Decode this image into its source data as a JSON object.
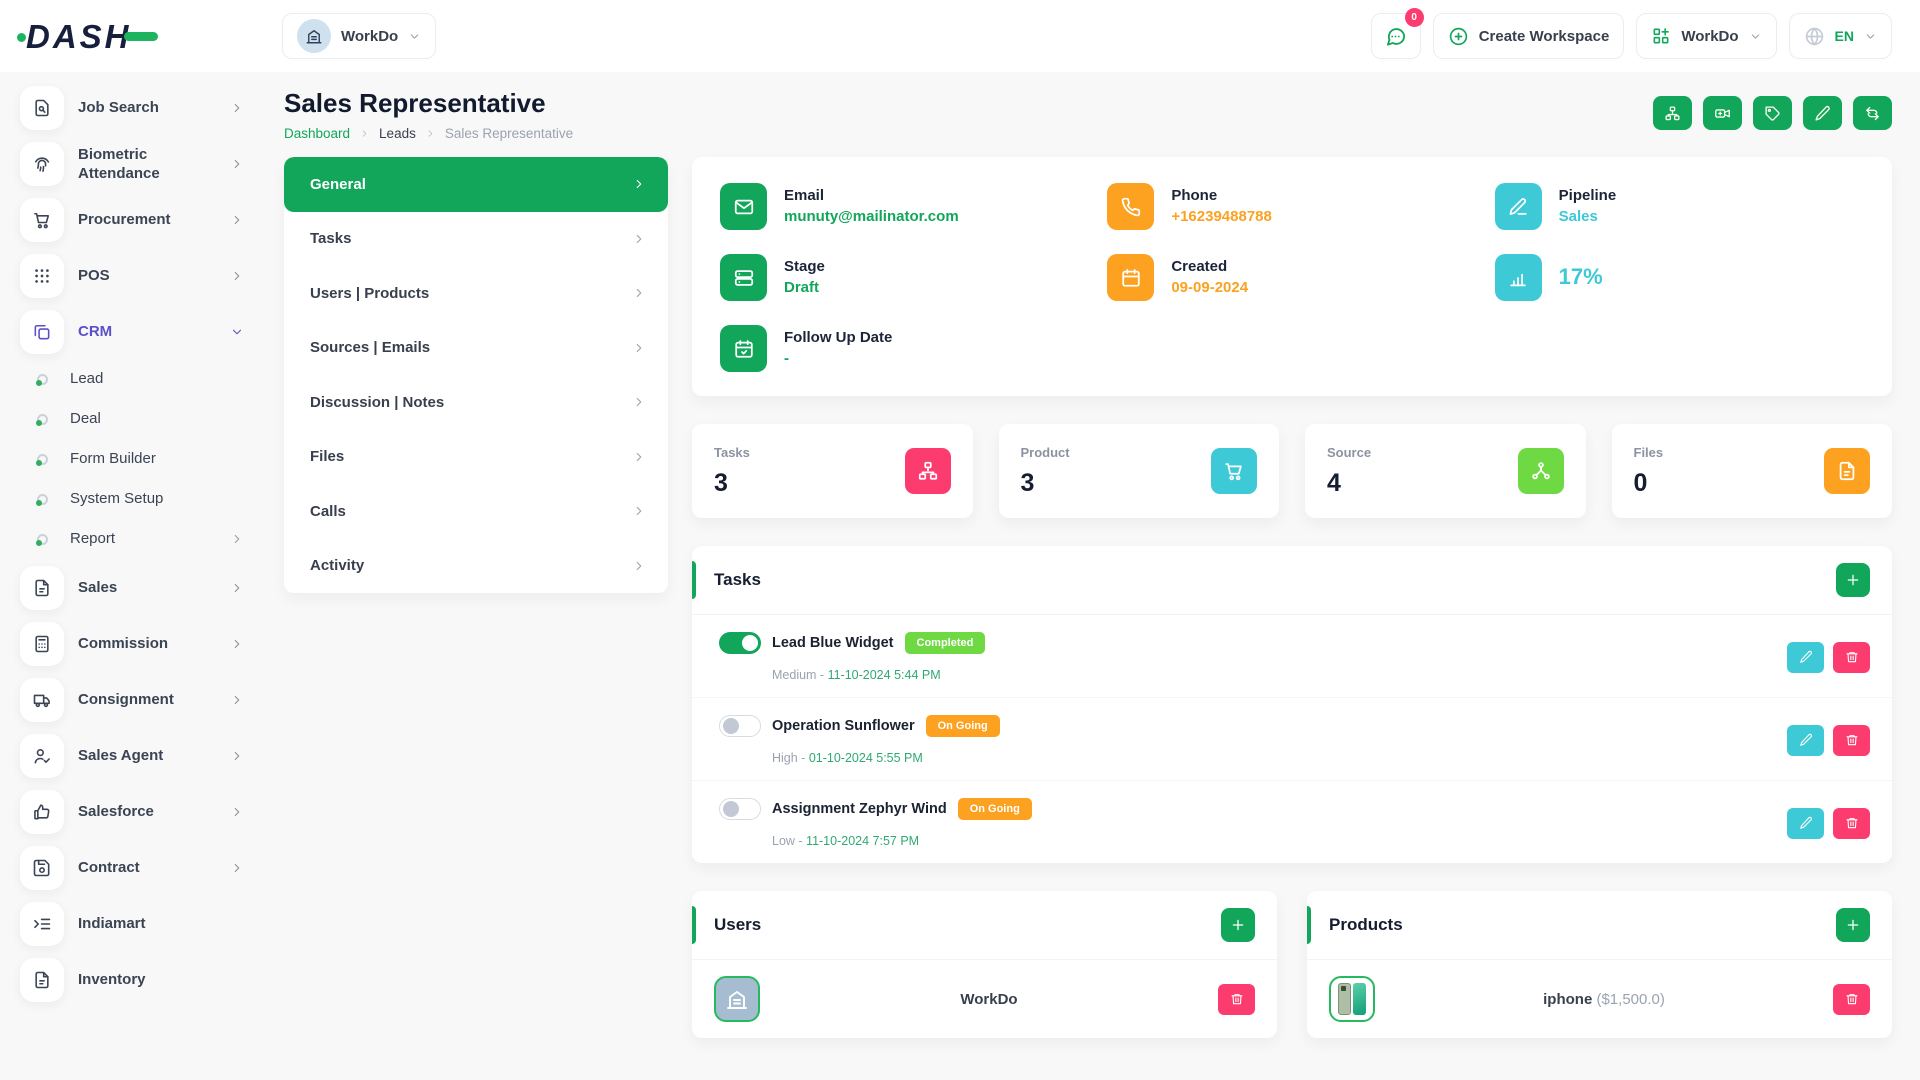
{
  "colors": {
    "green": "#11a65a",
    "green_bright": "#6fd943",
    "cyan": "#3ec9d6",
    "orange": "#fca120",
    "pink": "#fc3c6e",
    "purple": "#5b50c9"
  },
  "header": {
    "logo": "DASH",
    "workspace": {
      "label": "WorkDo",
      "icon": "building-icon"
    },
    "messages": {
      "icon": "chat-icon",
      "badge": "0"
    },
    "create_workspace": {
      "label": "Create Workspace",
      "icon": "plus-circle-icon"
    },
    "workdo_menu": {
      "label": "WorkDo",
      "icon": "grid-plus-icon"
    },
    "language": {
      "label": "EN",
      "icon": "globe-icon"
    }
  },
  "sidebar": {
    "items": [
      {
        "label": "Job Search",
        "icon": "file-search-icon",
        "chevron": "right"
      },
      {
        "label": "Biometric Attendance",
        "icon": "fingerprint-icon",
        "chevron": "right"
      },
      {
        "label": "Procurement",
        "icon": "cart-icon",
        "chevron": "right"
      },
      {
        "label": "POS",
        "icon": "grid-dots-icon",
        "chevron": "right"
      },
      {
        "label": "CRM",
        "icon": "copy-icon",
        "chevron": "down",
        "active": true,
        "children": [
          {
            "label": "Lead"
          },
          {
            "label": "Deal"
          },
          {
            "label": "Form Builder"
          },
          {
            "label": "System Setup"
          },
          {
            "label": "Report",
            "chevron": "right"
          }
        ]
      },
      {
        "label": "Sales",
        "icon": "file-icon",
        "chevron": "right"
      },
      {
        "label": "Commission",
        "icon": "calculator-icon",
        "chevron": "right"
      },
      {
        "label": "Consignment",
        "icon": "truck-icon",
        "chevron": "right"
      },
      {
        "label": "Sales Agent",
        "icon": "user-check-icon",
        "chevron": "right"
      },
      {
        "label": "Salesforce",
        "icon": "thumbs-up-icon",
        "chevron": "right"
      },
      {
        "label": "Contract",
        "icon": "floppy-icon",
        "chevron": "right"
      },
      {
        "label": "Indiamart",
        "icon": "indent-icon"
      },
      {
        "label": "Inventory",
        "icon": "file-icon"
      }
    ]
  },
  "page": {
    "title": "Sales Representative",
    "breadcrumb": [
      {
        "label": "Dashboard",
        "type": "link"
      },
      {
        "label": "Leads",
        "type": "mid"
      },
      {
        "label": "Sales Representative",
        "type": "current"
      }
    ],
    "actions": [
      {
        "icon": "sitemap-icon",
        "name": "pipeline-view-button"
      },
      {
        "icon": "video-plus-icon",
        "name": "meeting-button"
      },
      {
        "icon": "tag-icon",
        "name": "labels-button"
      },
      {
        "icon": "pencil-icon",
        "name": "edit-lead-button"
      },
      {
        "icon": "swap-icon",
        "name": "convert-button"
      }
    ]
  },
  "tabs": [
    {
      "label": "General",
      "active": true
    },
    {
      "label": "Tasks"
    },
    {
      "label": "Users | Products"
    },
    {
      "label": "Sources | Emails"
    },
    {
      "label": "Discussion | Notes"
    },
    {
      "label": "Files"
    },
    {
      "label": "Calls"
    },
    {
      "label": "Activity"
    }
  ],
  "overview": {
    "fields": [
      {
        "label": "Email",
        "value": "munuty@mailinator.com",
        "icon": "envelope-icon",
        "color": "green"
      },
      {
        "label": "Phone",
        "value": "+16239488788",
        "icon": "phone-icon",
        "color": "orange"
      },
      {
        "label": "Pipeline",
        "value": "Sales",
        "icon": "pen-icon",
        "color": "cyan"
      },
      {
        "label": "Stage",
        "value": "Draft",
        "icon": "server-icon",
        "color": "green"
      },
      {
        "label": "Created",
        "value": "09-09-2024",
        "icon": "calendar-icon",
        "color": "orange"
      },
      {
        "label": "",
        "value": "17%",
        "icon": "chart-icon",
        "color": "cyan",
        "progress": 17
      },
      {
        "label": "Follow Up Date",
        "value": "-",
        "icon": "calendar-clock-icon",
        "color": "green"
      }
    ]
  },
  "stats": [
    {
      "label": "Tasks",
      "value": "3",
      "icon": "sitemap-icon",
      "color": "pink"
    },
    {
      "label": "Product",
      "value": "3",
      "icon": "cart-icon",
      "color": "cyan"
    },
    {
      "label": "Source",
      "value": "4",
      "icon": "share-nodes-icon",
      "color": "green_bright"
    },
    {
      "label": "Files",
      "value": "0",
      "icon": "file-icon",
      "color": "orange"
    }
  ],
  "tasks": {
    "title": "Tasks",
    "items": [
      {
        "name": "Lead Blue Widget",
        "status": "Completed",
        "status_color": "green_bright",
        "toggle": true,
        "priority": "Medium",
        "datetime": "11-10-2024 5:44 PM"
      },
      {
        "name": "Operation Sunflower",
        "status": "On Going",
        "status_color": "orange",
        "toggle": false,
        "priority": "High",
        "datetime": "01-10-2024 5:55 PM"
      },
      {
        "name": "Assignment Zephyr Wind",
        "status": "On Going",
        "status_color": "orange",
        "toggle": false,
        "priority": "Low",
        "datetime": "11-10-2024 7:57 PM"
      }
    ]
  },
  "users": {
    "title": "Users",
    "rows": [
      {
        "name": "WorkDo",
        "avatar": "building-icon"
      }
    ]
  },
  "products": {
    "title": "Products",
    "rows": [
      {
        "name": "iphone",
        "price": "($1,500.0)",
        "thumb": "iphone-image"
      }
    ]
  }
}
